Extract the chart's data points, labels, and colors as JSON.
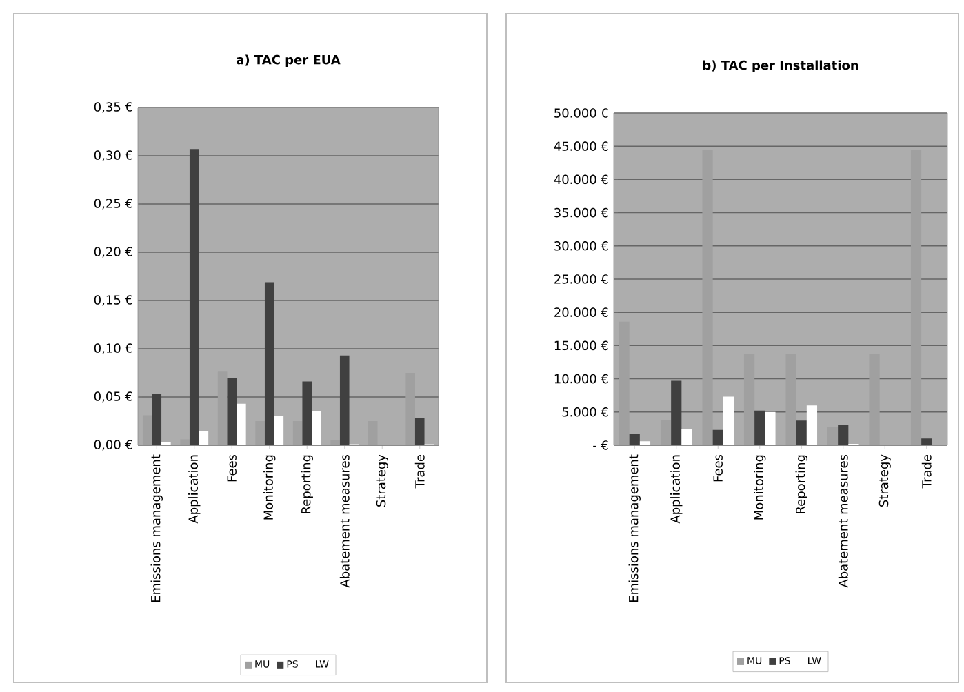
{
  "chart_data": [
    {
      "type": "bar",
      "title": "a) TAC per EUA",
      "categories": [
        "Emissions management",
        "Application",
        "Fees",
        "Monitoring",
        "Reporting",
        "Abatement measures",
        "Strategy",
        "Trade"
      ],
      "series": [
        {
          "name": "MU",
          "color": "#a0a0a0",
          "values": [
            0.031,
            0.006,
            0.077,
            0.025,
            0.025,
            0.005,
            0.025,
            0.075
          ]
        },
        {
          "name": "PS",
          "color": "#404040",
          "values": [
            0.053,
            0.307,
            0.07,
            0.169,
            0.066,
            0.093,
            null,
            0.028
          ]
        },
        {
          "name": "LW",
          "color": "#ffffff",
          "values": [
            0.003,
            0.015,
            0.043,
            0.03,
            0.035,
            0.001,
            null,
            0.001
          ]
        }
      ],
      "ylim": [
        0,
        0.35
      ],
      "yticks": [
        {
          "value": 0,
          "label": "0,00 €"
        },
        {
          "value": 0.05,
          "label": "0,05 €"
        },
        {
          "value": 0.1,
          "label": "0,10 €"
        },
        {
          "value": 0.15,
          "label": "0,15 €"
        },
        {
          "value": 0.2,
          "label": "0,20 €"
        },
        {
          "value": 0.25,
          "label": "0,25 €"
        },
        {
          "value": 0.3,
          "label": "0,30 €"
        },
        {
          "value": 0.35,
          "label": "0,35 €"
        }
      ],
      "grid": "y",
      "legend": "bottom"
    },
    {
      "type": "bar",
      "title": "b) TAC per Installation",
      "categories": [
        "Emissions management",
        "Application",
        "Fees",
        "Monitoring",
        "Reporting",
        "Abatement measures",
        "Strategy",
        "Trade"
      ],
      "series": [
        {
          "name": "MU",
          "color": "#a0a0a0",
          "values": [
            18600,
            3800,
            44500,
            13800,
            13800,
            2700,
            13800,
            44500
          ]
        },
        {
          "name": "PS",
          "color": "#404040",
          "values": [
            1700,
            9700,
            2300,
            5200,
            3700,
            3000,
            null,
            1000
          ]
        },
        {
          "name": "LW",
          "color": "#ffffff",
          "values": [
            600,
            2400,
            7300,
            5000,
            6000,
            200,
            null,
            100
          ]
        }
      ],
      "ylim": [
        0,
        50000
      ],
      "yticks": [
        {
          "value": 0,
          "label": "- €"
        },
        {
          "value": 5000,
          "label": "5.000 €"
        },
        {
          "value": 10000,
          "label": "10.000 €"
        },
        {
          "value": 15000,
          "label": "15.000 €"
        },
        {
          "value": 20000,
          "label": "20.000 €"
        },
        {
          "value": 25000,
          "label": "25.000 €"
        },
        {
          "value": 30000,
          "label": "30.000 €"
        },
        {
          "value": 35000,
          "label": "35.000 €"
        },
        {
          "value": 40000,
          "label": "40.000 €"
        },
        {
          "value": 45000,
          "label": "45.000 €"
        },
        {
          "value": 50000,
          "label": "50.000 €"
        }
      ],
      "grid": "y",
      "legend": "bottom"
    }
  ]
}
